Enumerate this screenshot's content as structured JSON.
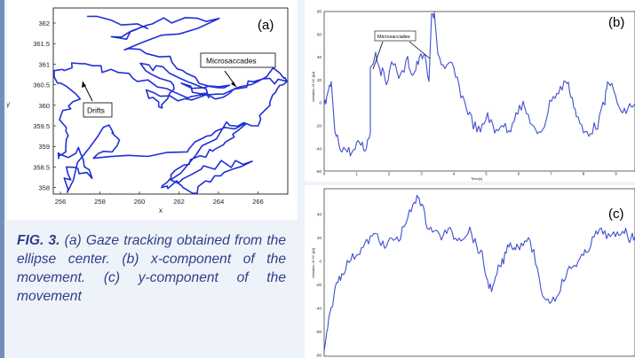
{
  "figure": {
    "caption_label": "FIG.   3.",
    "caption_text": " (a) Gaze tracking obtained from the ellipse center. (b) x-component of the movement. (c) y-component of the movement"
  },
  "panel_a": {
    "tag": "(a)",
    "xlabel": "x",
    "ylabel": "y",
    "x_ticks": [
      "256",
      "258",
      "260",
      "262",
      "264",
      "266"
    ],
    "y_ticks": [
      "362",
      "361.5",
      "361",
      "360.5",
      "360",
      "359.5",
      "359",
      "358.5",
      "358"
    ],
    "annotations": {
      "drifts": "Drifts",
      "microsaccades": "Microsaccades"
    },
    "line_color": "#1f2fd6"
  },
  "panel_b": {
    "tag": "(b)",
    "annotation": "Microsaccades",
    "ylabel": "Variation of XC [px]",
    "xlabel": "Time[s]",
    "y_ticks": [
      "80",
      "60",
      "40",
      "20",
      "0",
      "-20",
      "-40",
      "-60"
    ],
    "x_ticks": [
      "0",
      "1",
      "2",
      "3",
      "4",
      "5",
      "6",
      "7",
      "8",
      "9"
    ],
    "line_color": "#3f4fd0"
  },
  "panel_c": {
    "tag": "(c)",
    "ylabel": "Variation of YC [px]",
    "y_ticks": [
      "40",
      "20",
      "0",
      "-20",
      "-40",
      "-60",
      "-80"
    ],
    "line_color": "#3f4fd0"
  }
}
